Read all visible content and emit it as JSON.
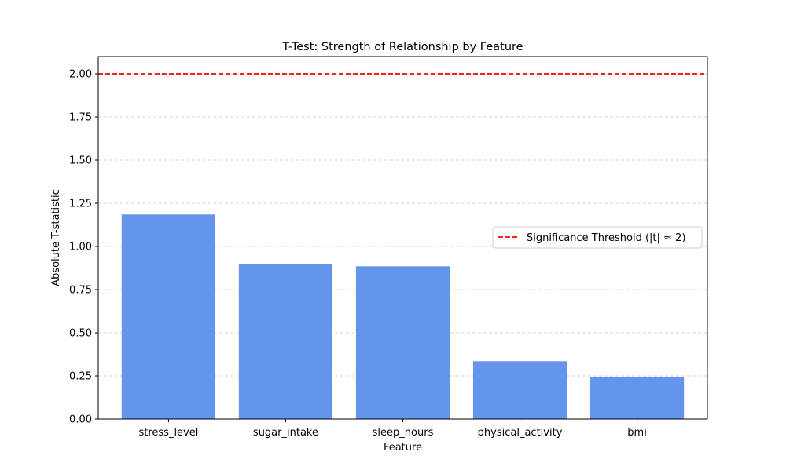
{
  "chart_data": {
    "type": "bar",
    "title": "T-Test: Strength of Relationship by Feature",
    "xlabel": "Feature",
    "ylabel": "Absolute T-statistic",
    "categories": [
      "stress_level",
      "sugar_intake",
      "sleep_hours",
      "physical_activity",
      "bmi"
    ],
    "values": [
      1.185,
      0.9,
      0.885,
      0.335,
      0.245
    ],
    "ylim": [
      0,
      2.1
    ],
    "yticks": [
      0.0,
      0.25,
      0.5,
      0.75,
      1.0,
      1.25,
      1.5,
      1.75,
      2.0
    ],
    "ytick_labels": [
      "0.00",
      "0.25",
      "0.50",
      "0.75",
      "1.00",
      "1.25",
      "1.50",
      "1.75",
      "2.00"
    ],
    "grid": "y-dashed",
    "bar_color": "#6495ED",
    "threshold": {
      "value": 2.0,
      "label": "Significance Threshold (|t| ≈ 2)",
      "color": "#FF0000",
      "style": "dashed"
    },
    "legend_position": "center-right"
  }
}
